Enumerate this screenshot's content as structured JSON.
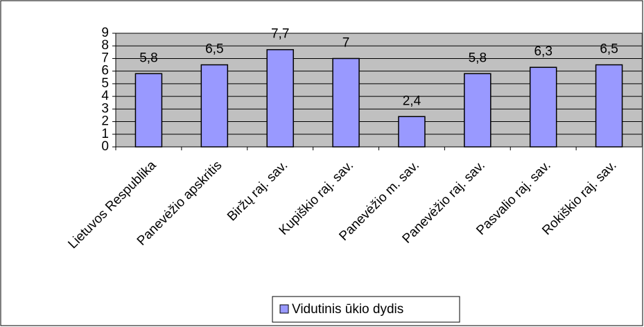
{
  "chart_data": {
    "type": "bar",
    "categories": [
      "Lietuvos Respublika",
      "Panevėžio apskritis",
      "Biržų raj. sav.",
      "Kupiškio raj. sav.",
      "Panevėžio m. sav.",
      "Panevėžio raj. sav.",
      "Pasvalio raj. sav.",
      "Rokiškio raj. sav."
    ],
    "series": [
      {
        "name": "Vidutinis ūkio dydis",
        "color": "#9999ff",
        "values": [
          5.8,
          6.5,
          7.7,
          7,
          2.4,
          5.8,
          6.3,
          6.5
        ],
        "value_labels": [
          "5,8",
          "6,5",
          "7,7",
          "7",
          "2,4",
          "5,8",
          "6,3",
          "6,5"
        ]
      }
    ],
    "ylim": [
      0,
      9
    ],
    "yticks": [
      0,
      1,
      2,
      3,
      4,
      5,
      6,
      7,
      8,
      9
    ],
    "grid": true,
    "legend": "bottom"
  }
}
